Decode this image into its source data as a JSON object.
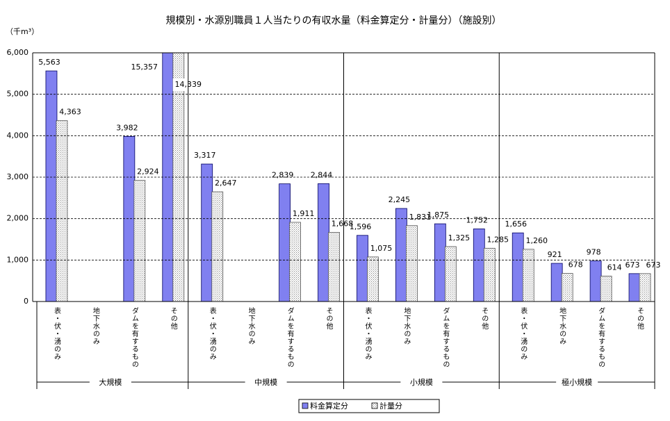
{
  "chart_data": {
    "type": "bar",
    "title": "規模別・水源別職員１人当たりの有収水量（料金算定分・計量分）（施設別）",
    "y_label": "（千m³）",
    "groups": [
      "大規模",
      "中規模",
      "小規模",
      "極小規模"
    ],
    "categories": [
      "表・伏・湧のみ",
      "地下水のみ",
      "ダムを有するもの",
      "その他",
      "表・伏・湧のみ",
      "地下水のみ",
      "ダムを有するもの",
      "その他",
      "表・伏・湧のみ",
      "地下水のみ",
      "ダムを有するもの",
      "その他",
      "表・伏・湧のみ",
      "地下水のみ",
      "ダムを有するもの",
      "その他"
    ],
    "series": [
      {
        "name": "料金算定分",
        "color": "#8080f0",
        "pattern": "solid",
        "values": [
          5563,
          null,
          3982,
          15357,
          3317,
          null,
          2839,
          2844,
          1596,
          2245,
          1875,
          1752,
          1656,
          921,
          978,
          673
        ],
        "value_labels": [
          "5,563",
          null,
          "3,982",
          "15,357",
          "3,317",
          null,
          "2,839",
          "2,844",
          "1,596",
          "2,245",
          "1,875",
          "1,752",
          "1,656",
          "921",
          "978",
          "673"
        ]
      },
      {
        "name": "計量分",
        "color": "#e8e8f0",
        "pattern": "dots",
        "values": [
          4363,
          null,
          2924,
          14339,
          2647,
          null,
          1911,
          1668,
          1075,
          1831,
          1325,
          1285,
          1260,
          678,
          614,
          673
        ],
        "value_labels": [
          "4,363",
          null,
          "2,924",
          "14,339",
          "2,647",
          null,
          "1,911",
          "1,668",
          "1,075",
          "1,831",
          "1,325",
          "1,285",
          "1,260",
          "678",
          "614",
          "673"
        ]
      }
    ],
    "ylim": [
      0,
      6000
    ],
    "yticks": [
      0,
      {
        "value": 1000,
        "label": "1,000"
      },
      {
        "value": 2000,
        "label": "2,000"
      },
      {
        "value": 3000,
        "label": "3,000"
      },
      {
        "value": 4000,
        "label": "4,000"
      },
      {
        "value": 5000,
        "label": "5,000"
      },
      {
        "value": 6000,
        "label": "6,000"
      }
    ],
    "grid": true,
    "legend": "bottom"
  }
}
